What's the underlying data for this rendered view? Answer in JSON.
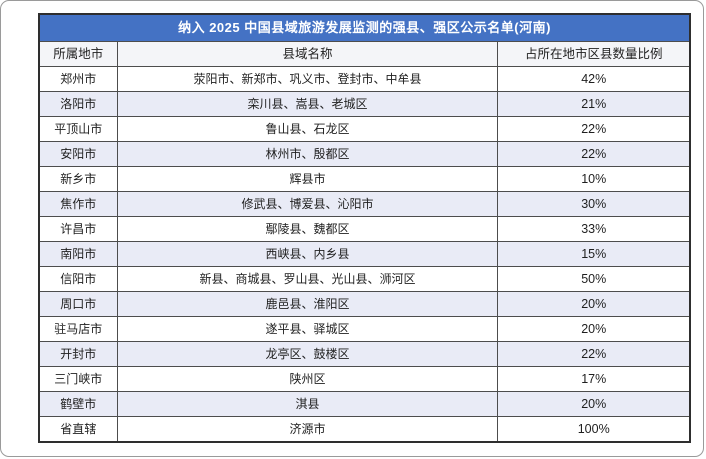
{
  "title": "纳入 2025 中国县域旅游发展监测的强县、强区公示名单(河南)",
  "colors": {
    "title_bg": "#4472C4",
    "title_text": "#FFFFFF",
    "header_bg": "#F4F5F8",
    "stripe": "#E9EBF6",
    "border": "#4d4d4d",
    "text": "#1f1f1f"
  },
  "columns": {
    "city": "所属地市",
    "counties": "县域名称",
    "ratio": "占所在地市区县数量比例"
  },
  "rows": [
    {
      "city": "郑州市",
      "counties": "荥阳市、新郑市、巩义市、登封市、中牟县",
      "ratio": "42%"
    },
    {
      "city": "洛阳市",
      "counties": "栾川县、嵩县、老城区",
      "ratio": "21%"
    },
    {
      "city": "平顶山市",
      "counties": "鲁山县、石龙区",
      "ratio": "22%"
    },
    {
      "city": "安阳市",
      "counties": "林州市、殷都区",
      "ratio": "22%"
    },
    {
      "city": "新乡市",
      "counties": "辉县市",
      "ratio": "10%"
    },
    {
      "city": "焦作市",
      "counties": "修武县、博爱县、沁阳市",
      "ratio": "30%"
    },
    {
      "city": "许昌市",
      "counties": "鄢陵县、魏都区",
      "ratio": "33%"
    },
    {
      "city": "南阳市",
      "counties": "西峡县、内乡县",
      "ratio": "15%"
    },
    {
      "city": "信阳市",
      "counties": "新县、商城县、罗山县、光山县、浉河区",
      "ratio": "50%"
    },
    {
      "city": "周口市",
      "counties": "鹿邑县、淮阳区",
      "ratio": "20%"
    },
    {
      "city": "驻马店市",
      "counties": "遂平县、驿城区",
      "ratio": "20%"
    },
    {
      "city": "开封市",
      "counties": "龙亭区、鼓楼区",
      "ratio": "22%"
    },
    {
      "city": "三门峡市",
      "counties": "陕州区",
      "ratio": "17%"
    },
    {
      "city": "鹤壁市",
      "counties": "淇县",
      "ratio": "20%"
    },
    {
      "city": "省直辖",
      "counties": "济源市",
      "ratio": "100%"
    }
  ]
}
